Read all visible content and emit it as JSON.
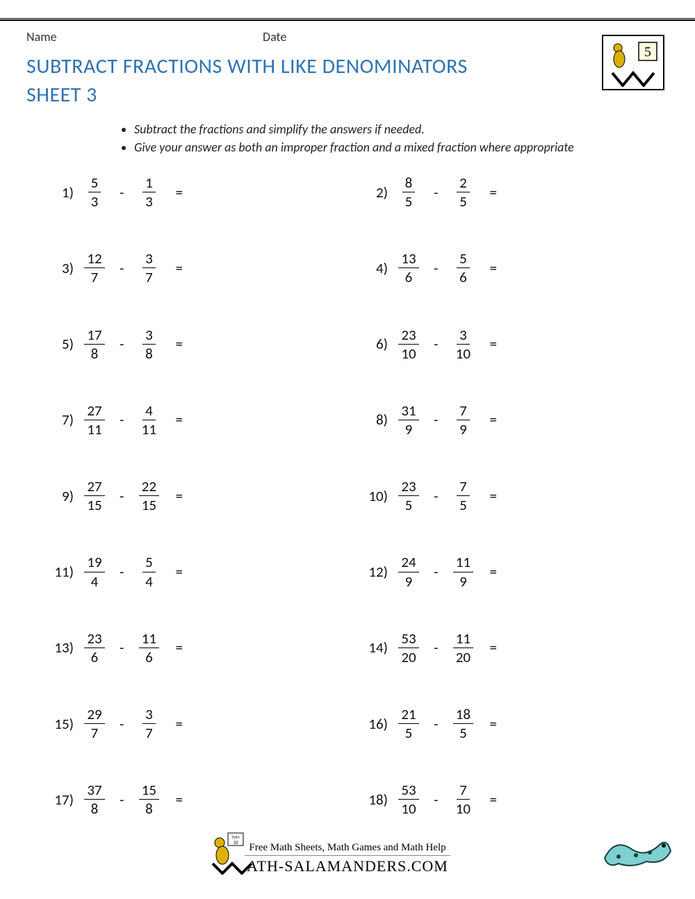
{
  "header": {
    "name_label": "Name",
    "date_label": "Date",
    "grade_badge": "5"
  },
  "title_line1": "SUBTRACT FRACTIONS WITH LIKE DENOMINATORS",
  "title_line2": "SHEET 3",
  "instructions": [
    "Subtract the fractions and simplify the answers if needed.",
    "Give your answer as both an improper fraction and a mixed fraction where appropriate"
  ],
  "problems": [
    {
      "n": "1)",
      "a_num": "5",
      "a_den": "3",
      "b_num": "1",
      "b_den": "3"
    },
    {
      "n": "2)",
      "a_num": "8",
      "a_den": "5",
      "b_num": "2",
      "b_den": "5"
    },
    {
      "n": "3)",
      "a_num": "12",
      "a_den": "7",
      "b_num": "3",
      "b_den": "7"
    },
    {
      "n": "4)",
      "a_num": "13",
      "a_den": "6",
      "b_num": "5",
      "b_den": "6"
    },
    {
      "n": "5)",
      "a_num": "17",
      "a_den": "8",
      "b_num": "3",
      "b_den": "8"
    },
    {
      "n": "6)",
      "a_num": "23",
      "a_den": "10",
      "b_num": "3",
      "b_den": "10"
    },
    {
      "n": "7)",
      "a_num": "27",
      "a_den": "11",
      "b_num": "4",
      "b_den": "11"
    },
    {
      "n": "8)",
      "a_num": "31",
      "a_den": "9",
      "b_num": "7",
      "b_den": "9"
    },
    {
      "n": "9)",
      "a_num": "27",
      "a_den": "15",
      "b_num": "22",
      "b_den": "15"
    },
    {
      "n": "10)",
      "a_num": "23",
      "a_den": "5",
      "b_num": "7",
      "b_den": "5"
    },
    {
      "n": "11)",
      "a_num": "19",
      "a_den": "4",
      "b_num": "5",
      "b_den": "4"
    },
    {
      "n": "12)",
      "a_num": "24",
      "a_den": "9",
      "b_num": "11",
      "b_den": "9"
    },
    {
      "n": "13)",
      "a_num": "23",
      "a_den": "6",
      "b_num": "11",
      "b_den": "6"
    },
    {
      "n": "14)",
      "a_num": "53",
      "a_den": "20",
      "b_num": "11",
      "b_den": "20"
    },
    {
      "n": "15)",
      "a_num": "29",
      "a_den": "7",
      "b_num": "3",
      "b_den": "7"
    },
    {
      "n": "16)",
      "a_num": "21",
      "a_den": "5",
      "b_num": "18",
      "b_den": "5"
    },
    {
      "n": "17)",
      "a_num": "37",
      "a_den": "8",
      "b_num": "15",
      "b_den": "8"
    },
    {
      "n": "18)",
      "a_num": "53",
      "a_den": "10",
      "b_num": "7",
      "b_den": "10"
    }
  ],
  "footer": {
    "tagline": "Free Math Sheets, Math Games and Math Help",
    "site": "ATH-SALAMANDERS.COM"
  },
  "colors": {
    "title": "#2e74b5",
    "text": "#111111",
    "background": "#ffffff"
  }
}
